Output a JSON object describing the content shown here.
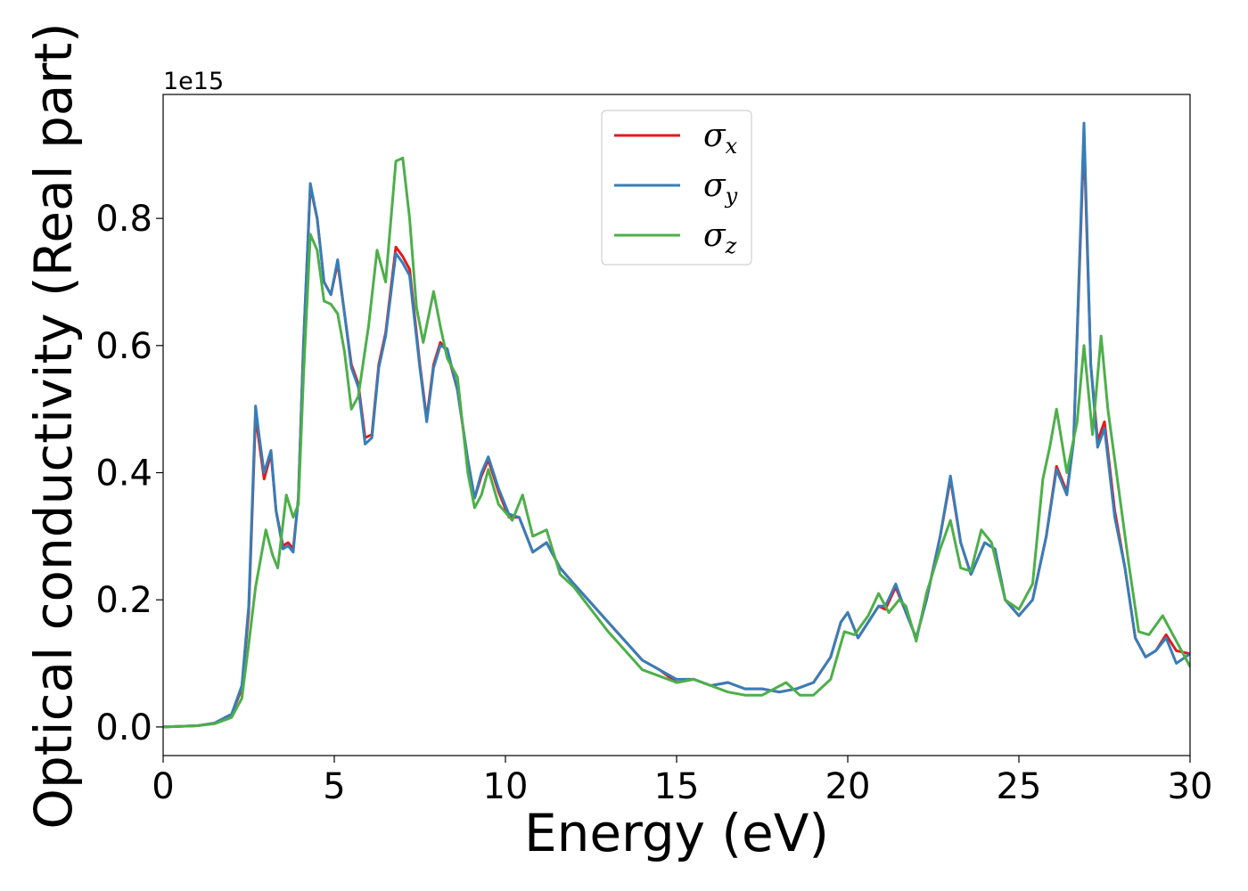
{
  "chart_data": {
    "type": "line",
    "xlabel": "Energy (eV)",
    "ylabel": "Optical conductivity (Real part)",
    "y_offset_text": "1e15",
    "xlim": [
      0,
      30
    ],
    "ylim": [
      -0.045,
      0.995
    ],
    "x_ticks": [
      0,
      5,
      10,
      15,
      20,
      25,
      30
    ],
    "y_ticks": [
      0.0,
      0.2,
      0.4,
      0.6,
      0.8
    ],
    "x_tick_labels": [
      "0",
      "5",
      "10",
      "15",
      "20",
      "25",
      "30"
    ],
    "y_tick_labels": [
      "0.0",
      "0.2",
      "0.4",
      "0.6",
      "0.8"
    ],
    "grid": false,
    "legend_position": "top-center",
    "series": [
      {
        "name": "σx",
        "symbol": "σ",
        "subscript": "x",
        "color": "#e41a1c",
        "points": [
          [
            0,
            0.0
          ],
          [
            1,
            0.002
          ],
          [
            1.5,
            0.006
          ],
          [
            2,
            0.02
          ],
          [
            2.3,
            0.06
          ],
          [
            2.5,
            0.18
          ],
          [
            2.7,
            0.49
          ],
          [
            2.8,
            0.45
          ],
          [
            2.95,
            0.39
          ],
          [
            3.15,
            0.43
          ],
          [
            3.3,
            0.34
          ],
          [
            3.5,
            0.285
          ],
          [
            3.65,
            0.29
          ],
          [
            3.8,
            0.28
          ],
          [
            3.95,
            0.36
          ],
          [
            4.1,
            0.6
          ],
          [
            4.3,
            0.85
          ],
          [
            4.5,
            0.8
          ],
          [
            4.7,
            0.7
          ],
          [
            4.9,
            0.68
          ],
          [
            5.1,
            0.73
          ],
          [
            5.3,
            0.65
          ],
          [
            5.5,
            0.57
          ],
          [
            5.7,
            0.54
          ],
          [
            5.9,
            0.455
          ],
          [
            6.1,
            0.46
          ],
          [
            6.3,
            0.57
          ],
          [
            6.5,
            0.62
          ],
          [
            6.8,
            0.755
          ],
          [
            7.0,
            0.74
          ],
          [
            7.2,
            0.72
          ],
          [
            7.5,
            0.57
          ],
          [
            7.7,
            0.485
          ],
          [
            7.9,
            0.57
          ],
          [
            8.1,
            0.605
          ],
          [
            8.3,
            0.59
          ],
          [
            8.6,
            0.53
          ],
          [
            8.9,
            0.42
          ],
          [
            9.1,
            0.36
          ],
          [
            9.3,
            0.395
          ],
          [
            9.5,
            0.42
          ],
          [
            9.8,
            0.37
          ],
          [
            10.1,
            0.33
          ],
          [
            10.4,
            0.33
          ],
          [
            10.8,
            0.275
          ],
          [
            11.2,
            0.29
          ],
          [
            11.6,
            0.25
          ],
          [
            12.0,
            0.225
          ],
          [
            12.5,
            0.195
          ],
          [
            13.0,
            0.165
          ],
          [
            13.5,
            0.135
          ],
          [
            14.0,
            0.105
          ],
          [
            14.5,
            0.09
          ],
          [
            15.0,
            0.07
          ],
          [
            15.5,
            0.075
          ],
          [
            16.0,
            0.065
          ],
          [
            16.5,
            0.07
          ],
          [
            17.0,
            0.06
          ],
          [
            17.5,
            0.06
          ],
          [
            18.0,
            0.055
          ],
          [
            18.5,
            0.06
          ],
          [
            19.0,
            0.07
          ],
          [
            19.5,
            0.11
          ],
          [
            19.8,
            0.165
          ],
          [
            20.0,
            0.18
          ],
          [
            20.3,
            0.14
          ],
          [
            20.6,
            0.165
          ],
          [
            20.9,
            0.19
          ],
          [
            21.1,
            0.185
          ],
          [
            21.4,
            0.22
          ],
          [
            21.7,
            0.18
          ],
          [
            22.0,
            0.14
          ],
          [
            22.3,
            0.2
          ],
          [
            22.7,
            0.3
          ],
          [
            23.0,
            0.39
          ],
          [
            23.3,
            0.29
          ],
          [
            23.6,
            0.24
          ],
          [
            24.0,
            0.29
          ],
          [
            24.3,
            0.28
          ],
          [
            24.6,
            0.2
          ],
          [
            25.0,
            0.175
          ],
          [
            25.4,
            0.2
          ],
          [
            25.8,
            0.3
          ],
          [
            26.1,
            0.41
          ],
          [
            26.4,
            0.37
          ],
          [
            26.6,
            0.45
          ],
          [
            26.9,
            0.93
          ],
          [
            27.1,
            0.57
          ],
          [
            27.3,
            0.45
          ],
          [
            27.5,
            0.48
          ],
          [
            27.8,
            0.34
          ],
          [
            28.1,
            0.25
          ],
          [
            28.4,
            0.14
          ],
          [
            28.7,
            0.11
          ],
          [
            29.0,
            0.12
          ],
          [
            29.3,
            0.145
          ],
          [
            29.6,
            0.12
          ],
          [
            30.0,
            0.115
          ]
        ]
      },
      {
        "name": "σy",
        "symbol": "σ",
        "subscript": "y",
        "color": "#377eb8",
        "points": [
          [
            0,
            0.0
          ],
          [
            1,
            0.002
          ],
          [
            1.5,
            0.006
          ],
          [
            2,
            0.02
          ],
          [
            2.3,
            0.065
          ],
          [
            2.5,
            0.19
          ],
          [
            2.7,
            0.505
          ],
          [
            2.8,
            0.46
          ],
          [
            2.95,
            0.4
          ],
          [
            3.15,
            0.435
          ],
          [
            3.3,
            0.34
          ],
          [
            3.5,
            0.28
          ],
          [
            3.65,
            0.285
          ],
          [
            3.8,
            0.275
          ],
          [
            3.95,
            0.36
          ],
          [
            4.1,
            0.6
          ],
          [
            4.3,
            0.855
          ],
          [
            4.5,
            0.8
          ],
          [
            4.7,
            0.7
          ],
          [
            4.9,
            0.68
          ],
          [
            5.1,
            0.735
          ],
          [
            5.3,
            0.65
          ],
          [
            5.5,
            0.565
          ],
          [
            5.7,
            0.535
          ],
          [
            5.9,
            0.445
          ],
          [
            6.1,
            0.455
          ],
          [
            6.3,
            0.565
          ],
          [
            6.5,
            0.615
          ],
          [
            6.8,
            0.745
          ],
          [
            7.0,
            0.73
          ],
          [
            7.2,
            0.71
          ],
          [
            7.5,
            0.565
          ],
          [
            7.7,
            0.48
          ],
          [
            7.9,
            0.565
          ],
          [
            8.1,
            0.6
          ],
          [
            8.3,
            0.595
          ],
          [
            8.6,
            0.53
          ],
          [
            8.9,
            0.42
          ],
          [
            9.1,
            0.36
          ],
          [
            9.3,
            0.4
          ],
          [
            9.5,
            0.425
          ],
          [
            9.8,
            0.375
          ],
          [
            10.1,
            0.335
          ],
          [
            10.4,
            0.33
          ],
          [
            10.8,
            0.275
          ],
          [
            11.2,
            0.29
          ],
          [
            11.6,
            0.25
          ],
          [
            12.0,
            0.225
          ],
          [
            12.5,
            0.195
          ],
          [
            13.0,
            0.165
          ],
          [
            13.5,
            0.135
          ],
          [
            14.0,
            0.105
          ],
          [
            14.5,
            0.09
          ],
          [
            15.0,
            0.075
          ],
          [
            15.5,
            0.075
          ],
          [
            16.0,
            0.065
          ],
          [
            16.5,
            0.07
          ],
          [
            17.0,
            0.06
          ],
          [
            17.5,
            0.06
          ],
          [
            18.0,
            0.055
          ],
          [
            18.5,
            0.06
          ],
          [
            19.0,
            0.07
          ],
          [
            19.5,
            0.11
          ],
          [
            19.8,
            0.165
          ],
          [
            20.0,
            0.18
          ],
          [
            20.3,
            0.14
          ],
          [
            20.6,
            0.165
          ],
          [
            20.9,
            0.19
          ],
          [
            21.1,
            0.19
          ],
          [
            21.4,
            0.225
          ],
          [
            21.7,
            0.18
          ],
          [
            22.0,
            0.14
          ],
          [
            22.3,
            0.2
          ],
          [
            22.7,
            0.3
          ],
          [
            23.0,
            0.395
          ],
          [
            23.3,
            0.29
          ],
          [
            23.6,
            0.24
          ],
          [
            24.0,
            0.29
          ],
          [
            24.3,
            0.28
          ],
          [
            24.6,
            0.2
          ],
          [
            25.0,
            0.175
          ],
          [
            25.4,
            0.2
          ],
          [
            25.8,
            0.3
          ],
          [
            26.1,
            0.405
          ],
          [
            26.4,
            0.365
          ],
          [
            26.6,
            0.45
          ],
          [
            26.9,
            0.95
          ],
          [
            27.1,
            0.57
          ],
          [
            27.3,
            0.44
          ],
          [
            27.5,
            0.47
          ],
          [
            27.8,
            0.33
          ],
          [
            28.1,
            0.25
          ],
          [
            28.4,
            0.14
          ],
          [
            28.7,
            0.11
          ],
          [
            29.0,
            0.12
          ],
          [
            29.3,
            0.14
          ],
          [
            29.6,
            0.1
          ],
          [
            30.0,
            0.115
          ]
        ]
      },
      {
        "name": "σz",
        "symbol": "σ",
        "subscript": "z",
        "color": "#4daf4a",
        "points": [
          [
            0,
            0.0
          ],
          [
            1,
            0.002
          ],
          [
            1.5,
            0.005
          ],
          [
            2,
            0.015
          ],
          [
            2.3,
            0.045
          ],
          [
            2.5,
            0.13
          ],
          [
            2.7,
            0.22
          ],
          [
            2.9,
            0.28
          ],
          [
            3.0,
            0.31
          ],
          [
            3.2,
            0.27
          ],
          [
            3.35,
            0.25
          ],
          [
            3.6,
            0.365
          ],
          [
            3.8,
            0.33
          ],
          [
            3.95,
            0.35
          ],
          [
            4.1,
            0.55
          ],
          [
            4.3,
            0.775
          ],
          [
            4.5,
            0.75
          ],
          [
            4.7,
            0.67
          ],
          [
            4.9,
            0.665
          ],
          [
            5.1,
            0.65
          ],
          [
            5.3,
            0.59
          ],
          [
            5.5,
            0.5
          ],
          [
            5.7,
            0.52
          ],
          [
            6.0,
            0.63
          ],
          [
            6.25,
            0.75
          ],
          [
            6.5,
            0.7
          ],
          [
            6.8,
            0.89
          ],
          [
            7.0,
            0.895
          ],
          [
            7.2,
            0.8
          ],
          [
            7.4,
            0.66
          ],
          [
            7.6,
            0.605
          ],
          [
            7.9,
            0.685
          ],
          [
            8.1,
            0.63
          ],
          [
            8.3,
            0.58
          ],
          [
            8.6,
            0.55
          ],
          [
            8.9,
            0.4
          ],
          [
            9.1,
            0.345
          ],
          [
            9.3,
            0.365
          ],
          [
            9.5,
            0.405
          ],
          [
            9.8,
            0.35
          ],
          [
            10.2,
            0.325
          ],
          [
            10.5,
            0.365
          ],
          [
            10.8,
            0.3
          ],
          [
            11.2,
            0.31
          ],
          [
            11.6,
            0.24
          ],
          [
            12.0,
            0.22
          ],
          [
            12.5,
            0.185
          ],
          [
            13.0,
            0.15
          ],
          [
            13.5,
            0.12
          ],
          [
            14.0,
            0.09
          ],
          [
            14.5,
            0.08
          ],
          [
            15.0,
            0.07
          ],
          [
            15.5,
            0.075
          ],
          [
            16.0,
            0.065
          ],
          [
            16.5,
            0.055
          ],
          [
            17.0,
            0.05
          ],
          [
            17.5,
            0.05
          ],
          [
            18.2,
            0.07
          ],
          [
            18.6,
            0.05
          ],
          [
            19.0,
            0.05
          ],
          [
            19.5,
            0.075
          ],
          [
            19.9,
            0.15
          ],
          [
            20.2,
            0.145
          ],
          [
            20.6,
            0.175
          ],
          [
            20.9,
            0.21
          ],
          [
            21.2,
            0.18
          ],
          [
            21.5,
            0.2
          ],
          [
            21.7,
            0.19
          ],
          [
            22.0,
            0.135
          ],
          [
            22.3,
            0.21
          ],
          [
            22.7,
            0.28
          ],
          [
            23.0,
            0.325
          ],
          [
            23.3,
            0.25
          ],
          [
            23.6,
            0.245
          ],
          [
            23.9,
            0.31
          ],
          [
            24.2,
            0.29
          ],
          [
            24.6,
            0.2
          ],
          [
            25.0,
            0.185
          ],
          [
            25.4,
            0.225
          ],
          [
            25.7,
            0.39
          ],
          [
            25.9,
            0.44
          ],
          [
            26.1,
            0.5
          ],
          [
            26.4,
            0.4
          ],
          [
            26.7,
            0.48
          ],
          [
            26.9,
            0.6
          ],
          [
            27.15,
            0.46
          ],
          [
            27.4,
            0.615
          ],
          [
            27.6,
            0.5
          ],
          [
            27.9,
            0.38
          ],
          [
            28.2,
            0.26
          ],
          [
            28.5,
            0.15
          ],
          [
            28.8,
            0.145
          ],
          [
            29.2,
            0.175
          ],
          [
            29.5,
            0.145
          ],
          [
            30.0,
            0.095
          ]
        ]
      }
    ]
  }
}
